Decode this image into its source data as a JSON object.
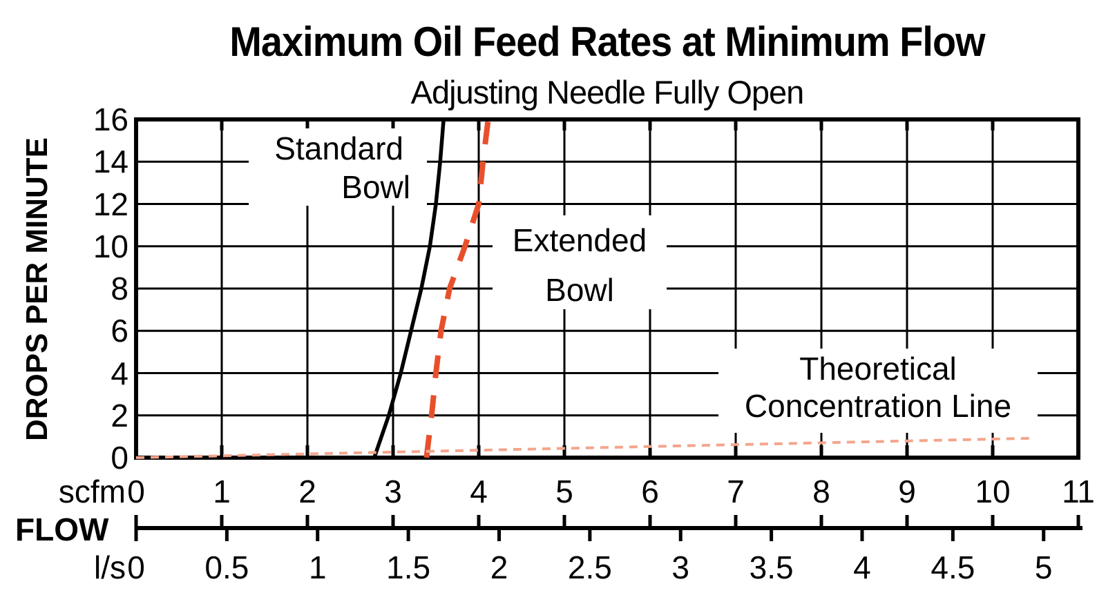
{
  "chart_data": {
    "type": "line",
    "title": "Maximum Oil Feed Rates at Minimum Flow",
    "subtitle": "Adjusting Needle Fully Open",
    "ylabel": "DROPS PER MINUTE",
    "ylim": [
      0,
      16
    ],
    "y_ticks": [
      0,
      2,
      4,
      6,
      8,
      10,
      12,
      14,
      16
    ],
    "x_axis_label": "FLOW",
    "grid": true,
    "x_scales": [
      {
        "unit": "scfm",
        "range": [
          0,
          11
        ],
        "ticks": [
          0,
          1,
          2,
          3,
          4,
          5,
          6,
          7,
          8,
          9,
          10,
          11
        ],
        "scfm_per_unit": 1
      },
      {
        "unit": "l/s",
        "range": [
          0,
          5.19
        ],
        "ticks": [
          0,
          0.5,
          1,
          1.5,
          2,
          2.5,
          3,
          3.5,
          4,
          4.5,
          5
        ],
        "scfm_per_unit": 2.1189
      }
    ],
    "series": [
      {
        "name": "Standard Bowl",
        "style": "solid",
        "color": "#000000",
        "width": 5.5,
        "x_unit": "scfm",
        "points": [
          [
            2.78,
            0
          ],
          [
            2.95,
            2
          ],
          [
            3.09,
            4
          ],
          [
            3.21,
            6
          ],
          [
            3.33,
            8
          ],
          [
            3.43,
            10
          ],
          [
            3.5,
            12
          ],
          [
            3.55,
            14
          ],
          [
            3.59,
            16
          ]
        ]
      },
      {
        "name": "Extended Bowl",
        "style": "dashed",
        "color": "#E8502C",
        "width": 8,
        "x_unit": "scfm",
        "points": [
          [
            3.39,
            0
          ],
          [
            3.45,
            2
          ],
          [
            3.5,
            4
          ],
          [
            3.56,
            6
          ],
          [
            3.66,
            8
          ],
          [
            3.84,
            10
          ],
          [
            4.0,
            12
          ],
          [
            4.05,
            14
          ],
          [
            4.11,
            16
          ]
        ]
      },
      {
        "name": "Theoretical Concentration Line",
        "style": "dotted",
        "color": "#F4A58C",
        "width": 4,
        "x_unit": "scfm",
        "points": [
          [
            0,
            0
          ],
          [
            10.47,
            0.92
          ]
        ]
      }
    ],
    "annotations": [
      {
        "lines": [
          "Standard",
          "Bowl"
        ]
      },
      {
        "lines": [
          "Extended",
          "Bowl"
        ]
      },
      {
        "lines": [
          "Theoretical",
          "Concentration Line"
        ]
      }
    ],
    "colors": {
      "ink": "#000000",
      "extended_dash": "#E8502C",
      "theoretical_dash": "#F4A58C",
      "background": "#FFFFFF"
    },
    "legend_position": "none"
  }
}
